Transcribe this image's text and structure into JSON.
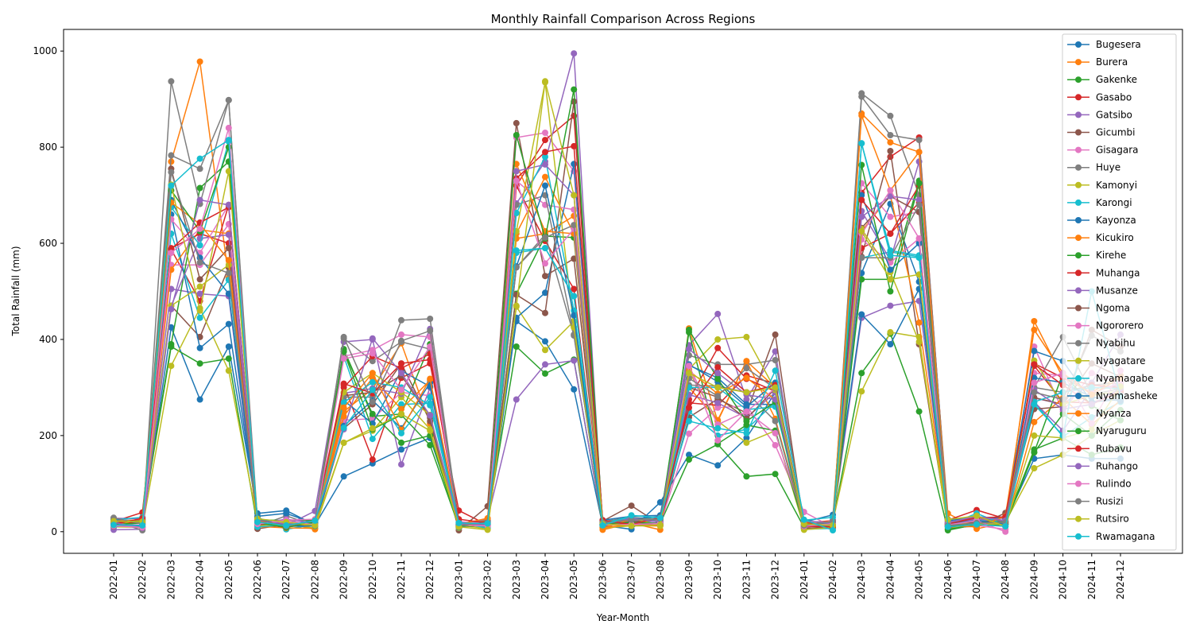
{
  "chart_data": {
    "type": "line",
    "title": "Monthly Rainfall Comparison Across Regions",
    "xlabel": "Year-Month",
    "ylabel": "Total Rainfall (mm)",
    "ylim": [
      -45,
      1045
    ],
    "yticks": [
      0,
      200,
      400,
      600,
      800,
      1000
    ],
    "grid": false,
    "legend_position": "right",
    "x": [
      "2022-01",
      "2022-02",
      "2022-03",
      "2022-04",
      "2022-05",
      "2022-06",
      "2022-07",
      "2022-08",
      "2022-09",
      "2022-10",
      "2022-11",
      "2022-12",
      "2023-01",
      "2023-02",
      "2023-03",
      "2023-04",
      "2023-05",
      "2023-06",
      "2023-07",
      "2023-08",
      "2023-09",
      "2023-10",
      "2023-11",
      "2023-12",
      "2024-01",
      "2024-02",
      "2024-03",
      "2024-04",
      "2024-05",
      "2024-06",
      "2024-07",
      "2024-08",
      "2024-09",
      "2024-10",
      "2024-11",
      "2024-12"
    ],
    "series": [
      {
        "name": "Bugesera",
        "color": "#1f77b4",
        "values": [
          14,
          10,
          425,
          275,
          385,
          38,
          44,
          14,
          115,
          142,
          171,
          195,
          16,
          14,
          438,
          396,
          296,
          13,
          5,
          61,
          160,
          138,
          195,
          290,
          14,
          22,
          538,
          682,
          520,
          13,
          25,
          21,
          152,
          160,
          152,
          152
        ]
      },
      {
        "name": "Burera",
        "color": "#ff7f0e",
        "values": [
          15,
          21,
          770,
          978,
          528,
          9,
          18,
          5,
          250,
          297,
          392,
          225,
          13,
          20,
          620,
          738,
          620,
          4,
          18,
          4,
          423,
          230,
          355,
          300,
          12,
          14,
          870,
          810,
          790,
          38,
          6,
          19,
          438,
          320,
          290,
          325
        ]
      },
      {
        "name": "Gakenke",
        "color": "#2ca02c",
        "values": [
          12,
          23,
          385,
          350,
          360,
          11,
          16,
          17,
          380,
          240,
          245,
          390,
          13,
          24,
          385,
          329,
          358,
          12,
          20,
          17,
          150,
          182,
          115,
          120,
          9,
          20,
          330,
          412,
          250,
          3,
          15,
          17,
          171,
          195,
          160,
          175
        ]
      },
      {
        "name": "Gasabo",
        "color": "#d62728",
        "values": [
          21,
          40,
          587,
          480,
          680,
          20,
          16,
          18,
          305,
          150,
          320,
          350,
          44,
          14,
          720,
          605,
          505,
          14,
          15,
          19,
          268,
          263,
          325,
          308,
          18,
          23,
          705,
          780,
          820,
          24,
          45,
          27,
          345,
          270,
          268,
          290
        ]
      },
      {
        "name": "Gatsibo",
        "color": "#9467bd",
        "values": [
          28,
          27,
          505,
          495,
          490,
          16,
          13,
          43,
          395,
          400,
          140,
          300,
          11,
          27,
          275,
          348,
          356,
          14,
          22,
          24,
          388,
          453,
          275,
          375,
          10,
          23,
          445,
          470,
          480,
          21,
          26,
          28,
          278,
          265,
          310,
          410
        ]
      },
      {
        "name": "Gicumbi",
        "color": "#8c564b",
        "values": [
          16,
          8,
          470,
          405,
          550,
          6,
          15,
          12,
          215,
          265,
          350,
          230,
          3,
          53,
          850,
          532,
          568,
          22,
          54,
          15,
          238,
          276,
          247,
          410,
          10,
          12,
          572,
          792,
          390,
          9,
          11,
          39,
          279,
          265,
          350,
          322
        ]
      },
      {
        "name": "Gisagara",
        "color": "#e377c2",
        "values": [
          12,
          9,
          555,
          555,
          640,
          16,
          12,
          17,
          232,
          235,
          290,
          283,
          12,
          9,
          820,
          830,
          750,
          12,
          18,
          15,
          204,
          258,
          262,
          180,
          41,
          9,
          725,
          655,
          665,
          13,
          25,
          14,
          385,
          250,
          330,
          310
        ]
      },
      {
        "name": "Huye",
        "color": "#7f7f7f",
        "values": [
          22,
          20,
          783,
          755,
          898,
          11,
          33,
          12,
          402,
          355,
          395,
          380,
          12,
          15,
          550,
          618,
          408,
          21,
          30,
          26,
          367,
          348,
          348,
          357,
          22,
          14,
          912,
          865,
          700,
          16,
          20,
          20,
          300,
          290,
          305,
          310
        ]
      },
      {
        "name": "Kamonyi",
        "color": "#bcbd22",
        "values": [
          10,
          9,
          345,
          465,
          335,
          21,
          18,
          7,
          185,
          210,
          280,
          213,
          14,
          6,
          468,
          378,
          438,
          8,
          12,
          12,
          333,
          230,
          185,
          210,
          8,
          20,
          292,
          415,
          405,
          6,
          17,
          20,
          132,
          160,
          200,
          232
        ]
      },
      {
        "name": "Karongi",
        "color": "#17becf",
        "values": [
          9,
          21,
          620,
          445,
          524,
          28,
          5,
          15,
          365,
          193,
          265,
          267,
          18,
          22,
          580,
          590,
          490,
          14,
          25,
          28,
          250,
          200,
          213,
          270,
          5,
          7,
          570,
          582,
          572,
          11,
          26,
          16,
          270,
          198,
          238,
          270
        ]
      },
      {
        "name": "Kayonza",
        "color": "#1f77b4",
        "values": [
          17,
          11,
          660,
          382,
          432,
          32,
          38,
          17,
          273,
          225,
          335,
          302,
          16,
          12,
          445,
          497,
          765,
          24,
          32,
          34,
          346,
          320,
          265,
          265,
          20,
          35,
          452,
          390,
          505,
          23,
          30,
          29,
          376,
          355,
          270,
          275
        ]
      },
      {
        "name": "Kicukiro",
        "color": "#ff7f0e",
        "values": [
          19,
          21,
          545,
          628,
          620,
          11,
          8,
          7,
          240,
          320,
          255,
          315,
          11,
          24,
          610,
          620,
          657,
          9,
          14,
          12,
          300,
          232,
          355,
          235,
          17,
          14,
          625,
          700,
          435,
          21,
          17,
          11,
          228,
          278,
          223,
          273
        ]
      },
      {
        "name": "Kirehe",
        "color": "#2ca02c",
        "values": [
          13,
          25,
          390,
          715,
          770,
          25,
          23,
          24,
          375,
          245,
          185,
          200,
          9,
          15,
          495,
          615,
          612,
          16,
          21,
          23,
          415,
          183,
          222,
          210,
          13,
          11,
          525,
          525,
          730,
          5,
          14,
          15,
          165,
          330,
          262,
          232
        ]
      },
      {
        "name": "Muhanga",
        "color": "#d62728",
        "values": [
          21,
          17,
          590,
          620,
          600,
          17,
          9,
          21,
          300,
          365,
          340,
          370,
          13,
          12,
          720,
          815,
          865,
          15,
          16,
          13,
          275,
          382,
          318,
          292,
          20,
          9,
          590,
          620,
          720,
          16,
          31,
          17,
          350,
          320,
          305,
          300
        ]
      },
      {
        "name": "Musanze",
        "color": "#9467bd",
        "values": [
          4,
          5,
          470,
          610,
          618,
          17,
          26,
          18,
          288,
          298,
          287,
          422,
          12,
          16,
          683,
          770,
          995,
          9,
          24,
          17,
          285,
          268,
          237,
          290,
          8,
          24,
          667,
          565,
          770,
          17,
          26,
          21,
          270,
          210,
          298,
          305
        ]
      },
      {
        "name": "Ngoma",
        "color": "#8c564b",
        "values": [
          11,
          14,
          755,
          525,
          590,
          15,
          10,
          16,
          283,
          290,
          325,
          237,
          18,
          21,
          493,
          455,
          895,
          18,
          20,
          27,
          300,
          280,
          235,
          298,
          7,
          10,
          632,
          698,
          665,
          12,
          20,
          24,
          255,
          260,
          420,
          385
        ]
      },
      {
        "name": "Ngororero",
        "color": "#e377c2",
        "values": [
          15,
          14,
          650,
          580,
          680,
          17,
          24,
          26,
          365,
          378,
          410,
          405,
          21,
          17,
          730,
          680,
          670,
          15,
          28,
          23,
          345,
          190,
          250,
          205,
          24,
          8,
          608,
          560,
          610,
          18,
          13,
          5,
          330,
          325,
          288,
          310
        ]
      },
      {
        "name": "Nyabihu",
        "color": "#7f7f7f",
        "values": [
          22,
          3,
          937,
          682,
          898,
          24,
          13,
          19,
          280,
          280,
          440,
          443,
          17,
          10,
          680,
          700,
          410,
          16,
          27,
          22,
          305,
          303,
          290,
          230,
          15,
          11,
          905,
          825,
          815,
          26,
          30,
          22,
          300,
          405,
          285,
          298
        ]
      },
      {
        "name": "Nyagatare",
        "color": "#bcbd22",
        "values": [
          12,
          28,
          470,
          510,
          555,
          12,
          16,
          11,
          290,
          330,
          290,
          243,
          8,
          19,
          625,
          935,
          425,
          12,
          29,
          12,
          338,
          400,
          405,
          295,
          4,
          9,
          630,
          540,
          395,
          19,
          16,
          16,
          356,
          265,
          283,
          293
        ]
      },
      {
        "name": "Nyamagabe",
        "color": "#17becf",
        "values": [
          25,
          30,
          675,
          596,
          812,
          10,
          14,
          18,
          269,
          311,
          300,
          263,
          20,
          7,
          663,
          780,
          460,
          19,
          29,
          20,
          300,
          300,
          254,
          260,
          24,
          30,
          808,
          585,
          575,
          14,
          38,
          14,
          270,
          290,
          300,
          298
        ]
      },
      {
        "name": "Nyamasheke",
        "color": "#1f77b4",
        "values": [
          24,
          24,
          690,
          570,
          495,
          29,
          11,
          12,
          220,
          273,
          215,
          310,
          9,
          21,
          552,
          720,
          450,
          10,
          26,
          32,
          348,
          312,
          260,
          310,
          12,
          18,
          700,
          545,
          600,
          17,
          23,
          16,
          320,
          310,
          280,
          272
        ]
      },
      {
        "name": "Nyanza",
        "color": "#ff7f0e",
        "values": [
          22,
          25,
          685,
          640,
          565,
          21,
          14,
          15,
          258,
          330,
          212,
          318,
          15,
          28,
          765,
          625,
          620,
          8,
          26,
          26,
          335,
          287,
          320,
          275,
          20,
          21,
          866,
          710,
          790,
          13,
          10,
          32,
          420,
          330,
          285,
          320
        ]
      },
      {
        "name": "Nyaruguru",
        "color": "#2ca02c",
        "values": [
          15,
          18,
          710,
          625,
          800,
          19,
          9,
          20,
          375,
          213,
          243,
          180,
          11,
          17,
          825,
          610,
          920,
          17,
          19,
          17,
          420,
          318,
          230,
          270,
          16,
          14,
          763,
          500,
          725,
          11,
          18,
          20,
          165,
          245,
          200,
          253
        ]
      },
      {
        "name": "Rubavu",
        "color": "#d62728",
        "values": [
          15,
          28,
          588,
          643,
          675,
          24,
          14,
          23,
          308,
          288,
          350,
          358,
          26,
          18,
          735,
          790,
          802,
          24,
          15,
          30,
          258,
          342,
          290,
          305,
          11,
          10,
          690,
          620,
          685,
          16,
          29,
          31,
          348,
          305,
          265,
          293
        ]
      },
      {
        "name": "Ruhango",
        "color": "#9467bd",
        "values": [
          19,
          8,
          463,
          690,
          680,
          24,
          16,
          22,
          213,
          402,
          330,
          242,
          16,
          14,
          750,
          764,
          700,
          15,
          28,
          20,
          380,
          330,
          285,
          275,
          22,
          19,
          655,
          698,
          690,
          19,
          32,
          23,
          295,
          255,
          265,
          298
        ]
      },
      {
        "name": "Rulindo",
        "color": "#e377c2",
        "values": [
          12,
          9,
          580,
          630,
          840,
          16,
          23,
          14,
          360,
          371,
          295,
          385,
          14,
          12,
          730,
          558,
          630,
          14,
          15,
          17,
          345,
          223,
          250,
          298,
          11,
          17,
          620,
          710,
          610,
          14,
          23,
          0,
          310,
          330,
          225,
          335
        ]
      },
      {
        "name": "Rusizi",
        "color": "#7f7f7f",
        "values": [
          29,
          16,
          748,
          560,
          538,
          26,
          11,
          23,
          405,
          270,
          397,
          418,
          13,
          19,
          550,
          612,
          638,
          19,
          25,
          26,
          319,
          282,
          340,
          298,
          13,
          21,
          570,
          570,
          680,
          13,
          18,
          19,
          290,
          275,
          408,
          375
        ]
      },
      {
        "name": "Rutsiro",
        "color": "#bcbd22",
        "values": [
          22,
          21,
          722,
          460,
          750,
          27,
          20,
          13,
          185,
          215,
          245,
          210,
          10,
          4,
          470,
          937,
          700,
          16,
          12,
          14,
          330,
          300,
          290,
          300,
          16,
          13,
          625,
          525,
          535,
          25,
          33,
          11,
          200,
          195,
          212,
          302
        ]
      },
      {
        "name": "Rwamagana",
        "color": "#17becf",
        "values": [
          14,
          13,
          720,
          776,
          815,
          20,
          13,
          23,
          216,
          295,
          205,
          280,
          18,
          17,
          585,
          590,
          490,
          13,
          34,
          29,
          230,
          215,
          205,
          335,
          25,
          3,
          808,
          575,
          570,
          10,
          15,
          11,
          265,
          200,
          500,
          283
        ]
      }
    ]
  }
}
